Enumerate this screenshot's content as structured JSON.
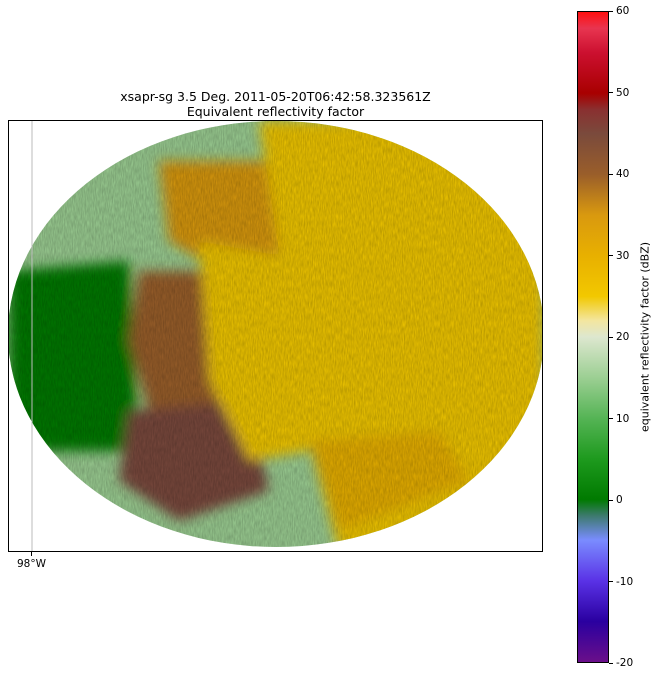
{
  "chart_data": {
    "type": "heatmap",
    "title_line1": "xsapr-sg 3.5 Deg. 2011-05-20T06:42:58.323561Z",
    "title_line2": "Equivalent reflectivity factor",
    "x_tick_labels": [
      "98°W"
    ],
    "colorbar": {
      "label": "equivalent reflectivity factor (dBZ)",
      "range": [
        -20,
        60
      ],
      "ticks": [
        -20,
        -10,
        0,
        10,
        20,
        30,
        40,
        50,
        60
      ],
      "colors": [
        {
          "value": -20,
          "color": "#6a0f8a"
        },
        {
          "value": -15,
          "color": "#2a00a0"
        },
        {
          "value": -10,
          "color": "#5a32e6"
        },
        {
          "value": -5,
          "color": "#7a8cff"
        },
        {
          "value": -2,
          "color": "#3d7a6e"
        },
        {
          "value": 0,
          "color": "#007a00"
        },
        {
          "value": 5,
          "color": "#1e9a1e"
        },
        {
          "value": 10,
          "color": "#55b455"
        },
        {
          "value": 15,
          "color": "#9ccf93"
        },
        {
          "value": 20,
          "color": "#dde7cf"
        },
        {
          "value": 22,
          "color": "#f3e6a0"
        },
        {
          "value": 25,
          "color": "#f2c800"
        },
        {
          "value": 30,
          "color": "#e8b000"
        },
        {
          "value": 35,
          "color": "#d9990f"
        },
        {
          "value": 40,
          "color": "#9a5e2a"
        },
        {
          "value": 45,
          "color": "#7a4a3c"
        },
        {
          "value": 48,
          "color": "#8a3030"
        },
        {
          "value": 50,
          "color": "#a80000"
        },
        {
          "value": 55,
          "color": "#cc1030"
        },
        {
          "value": 58,
          "color": "#e83550"
        },
        {
          "value": 60,
          "color": "#ff1010"
        }
      ]
    },
    "regions": [
      {
        "name": "west-clutter-strip",
        "dbz": 3
      },
      {
        "name": "west-convective-core",
        "dbz": 44
      },
      {
        "name": "southwest-core",
        "dbz": 46
      },
      {
        "name": "north-band",
        "dbz": 38
      },
      {
        "name": "central-stratiform",
        "dbz": 28
      },
      {
        "name": "east-stratiform",
        "dbz": 27
      },
      {
        "name": "south-bright-line",
        "dbz": 34
      }
    ]
  }
}
